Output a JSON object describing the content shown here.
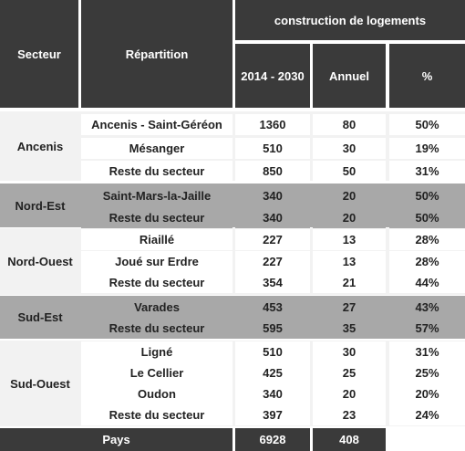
{
  "headers": {
    "secteur": "Secteur",
    "repartition": "Répartition",
    "group": "construction de logements",
    "period": "2014 - 2030",
    "annuel": "Annuel",
    "percent": "%"
  },
  "sectors": [
    {
      "name": "Ancenis",
      "rows": [
        {
          "repartition": "Ancenis - Saint-Géréon",
          "total": "1360",
          "annuel": "80",
          "pct": "50%"
        },
        {
          "repartition": "Mésanger",
          "total": "510",
          "annuel": "30",
          "pct": "19%"
        },
        {
          "repartition": "Reste du secteur",
          "total": "850",
          "annuel": "50",
          "pct": "31%"
        }
      ]
    },
    {
      "name": "Nord-Est",
      "rows": [
        {
          "repartition": "Saint-Mars-la-Jaille",
          "total": "340",
          "annuel": "20",
          "pct": "50%"
        },
        {
          "repartition": "Reste du secteur",
          "total": "340",
          "annuel": "20",
          "pct": "50%"
        }
      ]
    },
    {
      "name": "Nord-Ouest",
      "rows": [
        {
          "repartition": "Riaillé",
          "total": "227",
          "annuel": "13",
          "pct": "28%"
        },
        {
          "repartition": "Joué sur Erdre",
          "total": "227",
          "annuel": "13",
          "pct": "28%"
        },
        {
          "repartition": "Reste du secteur",
          "total": "354",
          "annuel": "21",
          "pct": "44%"
        }
      ]
    },
    {
      "name": "Sud-Est",
      "rows": [
        {
          "repartition": "Varades",
          "total": "453",
          "annuel": "27",
          "pct": "43%"
        },
        {
          "repartition": "Reste du secteur",
          "total": "595",
          "annuel": "35",
          "pct": "57%"
        }
      ]
    },
    {
      "name": "Sud-Ouest",
      "rows": [
        {
          "repartition": "Ligné",
          "total": "510",
          "annuel": "30",
          "pct": "31%"
        },
        {
          "repartition": "Le Cellier",
          "total": "425",
          "annuel": "25",
          "pct": "25%"
        },
        {
          "repartition": "Oudon",
          "total": "340",
          "annuel": "20",
          "pct": "20%"
        },
        {
          "repartition": "Reste du secteur",
          "total": "397",
          "annuel": "23",
          "pct": "24%"
        }
      ]
    }
  ],
  "footer": {
    "label": "Pays",
    "total": "6928",
    "annuel": "408"
  }
}
